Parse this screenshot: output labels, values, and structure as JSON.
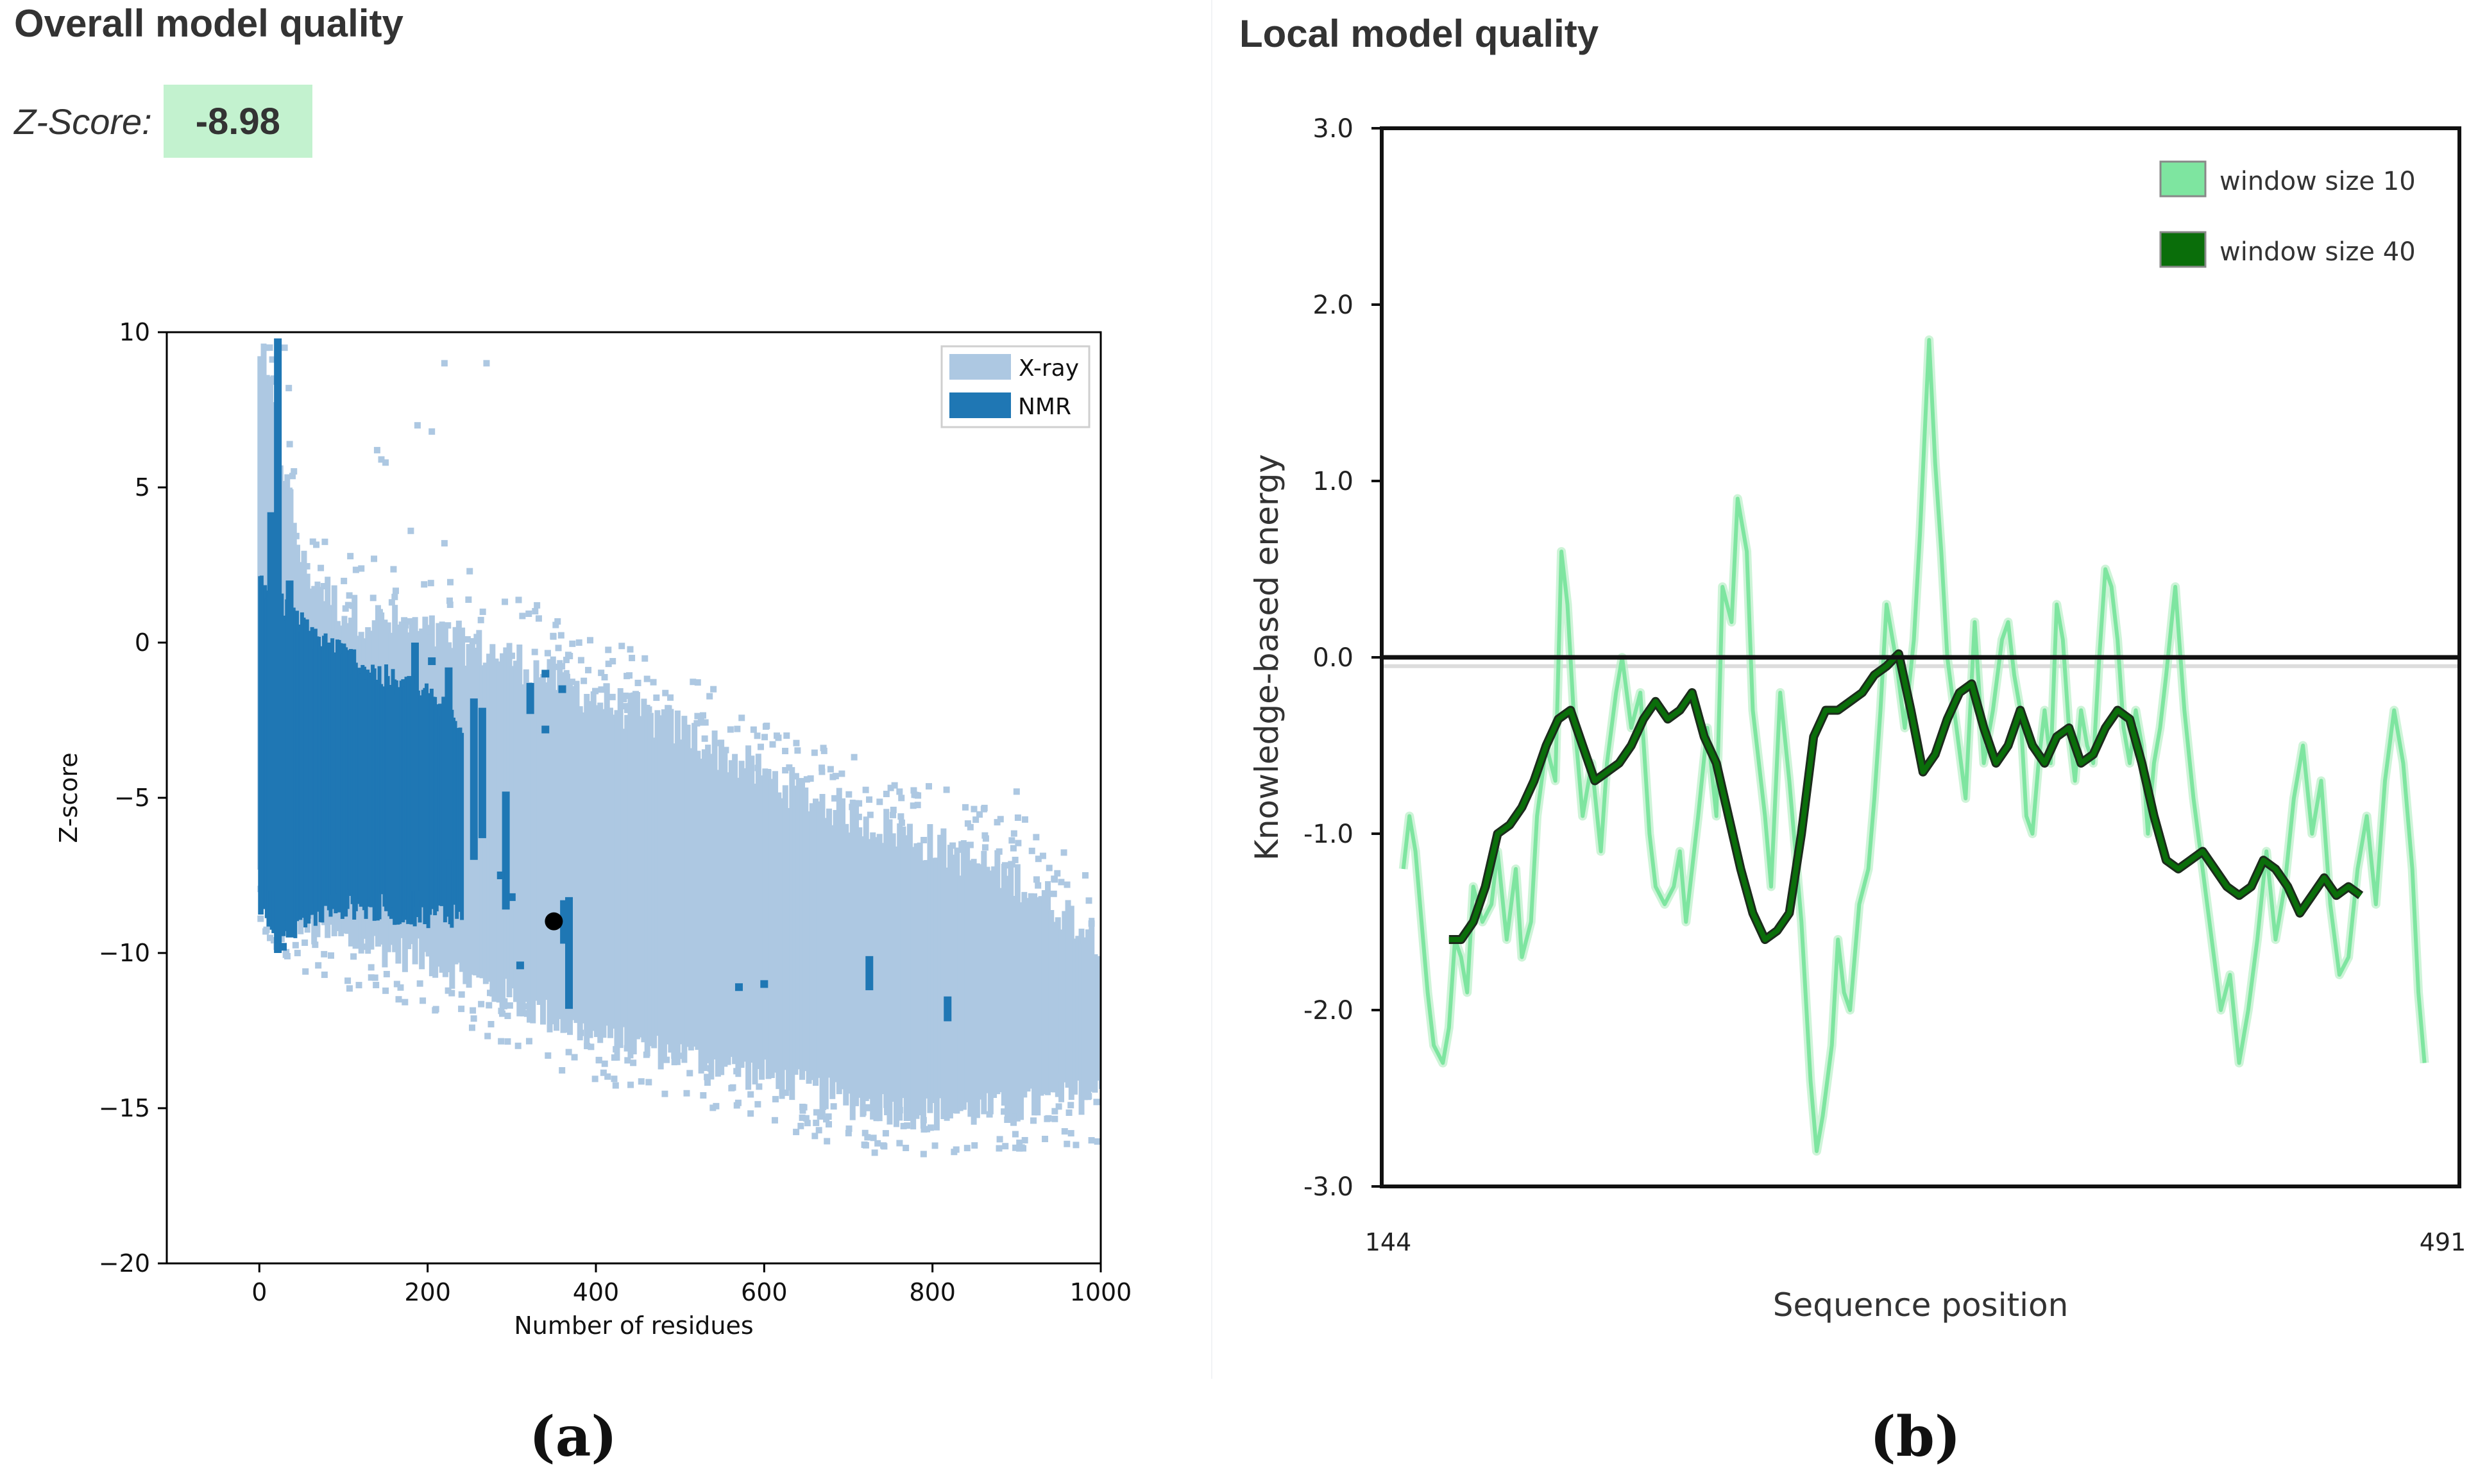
{
  "panel_a": {
    "title": "Overall model quality",
    "zscore_label": "Z-Score:",
    "zscore_value": "-8.98",
    "caption": "(a)"
  },
  "panel_b": {
    "title": "Local model quality",
    "caption": "(b)"
  },
  "colors": {
    "xray": "#adc8e2",
    "nmr": "#1f77b4",
    "w10": "#7ee5a0",
    "w40": "#0a6e0a",
    "zscore_bg": "#c3f2cf"
  },
  "chart_data": [
    {
      "type": "scatter",
      "title": "",
      "xlabel": "Number of residues",
      "ylabel": "Z-score",
      "xlim": [
        -110,
        1000
      ],
      "ylim": [
        -20,
        10
      ],
      "xticks": [
        0,
        200,
        400,
        600,
        800,
        1000
      ],
      "xtick_labels": [
        "0",
        "200",
        "400",
        "600",
        "800",
        "1000"
      ],
      "yticks": [
        10,
        5,
        0,
        -5,
        -10,
        -15,
        -20
      ],
      "ytick_labels": [
        "10",
        "5",
        "0",
        "−5",
        "−10",
        "−15",
        "−20"
      ],
      "legend": {
        "position": "top-right",
        "entries": [
          "X-ray",
          "NMR"
        ]
      },
      "series": [
        {
          "name": "X-ray",
          "description": "dense density cloud of reference structures",
          "envelope": [
            {
              "x": 0,
              "low": -7.5,
              "high": 9.5
            },
            {
              "x": 50,
              "low": -9.2,
              "high": 2.5
            },
            {
              "x": 100,
              "low": -9.6,
              "high": 1.0
            },
            {
              "x": 200,
              "low": -10.2,
              "high": 0.3
            },
            {
              "x": 300,
              "low": -11.5,
              "high": -0.5
            },
            {
              "x": 400,
              "low": -12.8,
              "high": -1.8
            },
            {
              "x": 500,
              "low": -13.3,
              "high": -2.8
            },
            {
              "x": 600,
              "low": -14.0,
              "high": -4.3
            },
            {
              "x": 700,
              "low": -14.8,
              "high": -5.5
            },
            {
              "x": 800,
              "low": -15.2,
              "high": -6.5
            },
            {
              "x": 900,
              "low": -15.0,
              "high": -7.6
            },
            {
              "x": 1000,
              "low": -14.5,
              "high": -9.5
            }
          ],
          "outliers": [
            [
              30,
              9.5
            ],
            [
              35,
              8.2
            ],
            [
              220,
              9.0
            ],
            [
              270,
              9.0
            ],
            [
              205,
              6.8
            ],
            [
              188,
              7.0
            ],
            [
              140,
              6.2
            ],
            [
              145,
              5.9
            ],
            [
              150,
              5.8
            ],
            [
              180,
              3.6
            ],
            [
              220,
              3.2
            ],
            [
              250,
              2.3
            ],
            [
              330,
              1.2
            ],
            [
              380,
              0.0
            ],
            [
              420,
              -0.6
            ],
            [
              450,
              -1.3
            ],
            [
              520,
              -2.6
            ],
            [
              560,
              -2.8
            ],
            [
              615,
              -3.0
            ],
            [
              685,
              -4.3
            ],
            [
              755,
              -4.6
            ],
            [
              900,
              -4.8
            ],
            [
              910,
              -5.7
            ],
            [
              960,
              -7.8
            ],
            [
              980,
              -9.6
            ],
            [
              990,
              -10.3
            ],
            [
              240,
              -11.8
            ],
            [
              950,
              -14.0
            ],
            [
              995,
              -14.8
            ],
            [
              920,
              -15.4
            ],
            [
              850,
              -16.2
            ],
            [
              880,
              -16.0
            ],
            [
              720,
              -15.8
            ]
          ]
        },
        {
          "name": "NMR",
          "description": "dense band at small residue counts",
          "envelope": [
            {
              "x": 0,
              "low": -8.5,
              "high": 2.0
            },
            {
              "x": 30,
              "low": -9.2,
              "high": 1.0
            },
            {
              "x": 60,
              "low": -8.8,
              "high": 0.3
            },
            {
              "x": 100,
              "low": -8.4,
              "high": -0.4
            },
            {
              "x": 150,
              "low": -8.6,
              "high": -1.2
            },
            {
              "x": 200,
              "low": -8.7,
              "high": -1.8
            },
            {
              "x": 240,
              "low": -8.7,
              "high": -2.5
            }
          ],
          "streaks": [
            {
              "x": 22,
              "low": -10.0,
              "high": 9.8
            },
            {
              "x": 14,
              "low": -8.0,
              "high": 4.2
            },
            {
              "x": 36,
              "low": -9.5,
              "high": 2.0
            },
            {
              "x": 185,
              "low": -8.0,
              "high": 0.0
            },
            {
              "x": 225,
              "low": -7.0,
              "high": -0.8
            },
            {
              "x": 255,
              "low": -7.0,
              "high": -1.8
            },
            {
              "x": 265,
              "low": -6.3,
              "high": -2.1
            },
            {
              "x": 293,
              "low": -8.6,
              "high": -4.8
            },
            {
              "x": 322,
              "low": -2.3,
              "high": -1.3
            },
            {
              "x": 368,
              "low": -11.8,
              "high": -8.2
            },
            {
              "x": 362,
              "low": -9.7,
              "high": -8.3
            },
            {
              "x": 725,
              "low": -11.2,
              "high": -10.1
            },
            {
              "x": 818,
              "low": -12.2,
              "high": -11.4
            }
          ],
          "points": [
            [
              340,
              -1.0
            ],
            [
              360,
              -1.5
            ],
            [
              287,
              -7.5
            ],
            [
              300,
              -8.2
            ],
            [
              310,
              -10.4
            ],
            [
              570,
              -11.1
            ],
            [
              600,
              -11.0
            ],
            [
              28,
              -9.8
            ],
            [
              180,
              -1.2
            ],
            [
              205,
              -0.6
            ],
            [
              340,
              -2.8
            ]
          ]
        },
        {
          "name": "Query model",
          "points": [
            [
              350,
              -8.98
            ]
          ]
        }
      ]
    },
    {
      "type": "line",
      "title": "",
      "xlabel": "Sequence position",
      "ylabel": "Knowledge-based energy",
      "xlim": [
        144,
        491
      ],
      "ylim": [
        -3.0,
        3.0
      ],
      "xtick_labels": [
        "144",
        "491"
      ],
      "yticks": [
        3.0,
        2.0,
        1.0,
        0.0,
        -1.0,
        -2.0,
        -3.0
      ],
      "ytick_labels": [
        "3.0",
        "2.0",
        "1.0",
        "0.0",
        "-1.0",
        "-2.0",
        "-3.0"
      ],
      "legend": {
        "position": "top-right",
        "entries": [
          "window size 10",
          "window size 40"
        ]
      },
      "reference_line": 0.0,
      "series": [
        {
          "name": "window size 10",
          "x": [
            149,
            151,
            153,
            155,
            157,
            159,
            162,
            164,
            166,
            168,
            170,
            172,
            175,
            178,
            180,
            183,
            186,
            188,
            191,
            193,
            196,
            199,
            201,
            203,
            205,
            208,
            211,
            214,
            216,
            219,
            221,
            224,
            227,
            230,
            232,
            235,
            238,
            240,
            242,
            244,
            246,
            249,
            252,
            254,
            257,
            259,
            262,
            264,
            266,
            268,
            270,
            273,
            276,
            278,
            280,
            283,
            285,
            287,
            290,
            292,
            294,
            296,
            299,
            302,
            304,
            306,
            308,
            311,
            314,
            317,
            319,
            322,
            324,
            326,
            328,
            331,
            334,
            337,
            340,
            343,
            346,
            348,
            350,
            352,
            354,
            356,
            358,
            360,
            362,
            364,
            366,
            368,
            370,
            372,
            374,
            376,
            378,
            380,
            382,
            384,
            386,
            388,
            390,
            392,
            394,
            396,
            398,
            400,
            403,
            406,
            409,
            412,
            415,
            418,
            421,
            424,
            427,
            430,
            433,
            436,
            439,
            442,
            445,
            448,
            451,
            454,
            457,
            460,
            463,
            466,
            469,
            472,
            475,
            478,
            481,
            483,
            485
          ],
          "y": [
            -1.2,
            -0.9,
            -1.1,
            -1.5,
            -1.9,
            -2.2,
            -2.3,
            -2.1,
            -1.6,
            -1.7,
            -1.9,
            -1.3,
            -1.5,
            -1.4,
            -1.1,
            -1.6,
            -1.2,
            -1.7,
            -1.5,
            -0.9,
            -0.5,
            -0.7,
            0.6,
            0.3,
            -0.3,
            -0.9,
            -0.6,
            -1.1,
            -0.6,
            -0.2,
            0.0,
            -0.4,
            -0.2,
            -1.0,
            -1.3,
            -1.4,
            -1.3,
            -1.1,
            -1.5,
            -1.2,
            -0.9,
            -0.4,
            -0.9,
            0.4,
            0.2,
            0.9,
            0.6,
            -0.3,
            -0.6,
            -0.9,
            -1.3,
            -0.2,
            -0.7,
            -1.1,
            -1.5,
            -2.4,
            -2.8,
            -2.6,
            -2.2,
            -1.6,
            -1.9,
            -2.0,
            -1.4,
            -1.2,
            -0.8,
            -0.3,
            0.3,
            0.0,
            -0.4,
            0.1,
            0.7,
            1.8,
            1.1,
            0.6,
            0.0,
            -0.4,
            -0.8,
            0.2,
            -0.6,
            -0.3,
            0.1,
            0.2,
            -0.1,
            -0.3,
            -0.9,
            -1.0,
            -0.6,
            -0.3,
            -0.6,
            0.3,
            0.1,
            -0.4,
            -0.7,
            -0.3,
            -0.5,
            -0.6,
            0.0,
            0.5,
            0.4,
            0.1,
            -0.4,
            -0.6,
            -0.3,
            -0.5,
            -1.0,
            -0.6,
            -0.4,
            -0.1,
            0.4,
            -0.3,
            -0.8,
            -1.2,
            -1.6,
            -2.0,
            -1.8,
            -2.3,
            -2.0,
            -1.6,
            -1.1,
            -1.6,
            -1.3,
            -0.8,
            -0.5,
            -1.0,
            -0.7,
            -1.4,
            -1.8,
            -1.7,
            -1.2,
            -0.9,
            -1.4,
            -0.7,
            -0.3,
            -0.6,
            -1.2,
            -1.9,
            -2.3
          ],
          "color": "#7ee5a0"
        },
        {
          "name": "window size 40",
          "x": [
            164,
            168,
            172,
            176,
            180,
            184,
            188,
            192,
            196,
            200,
            204,
            208,
            212,
            216,
            220,
            224,
            228,
            232,
            236,
            240,
            244,
            248,
            252,
            256,
            260,
            264,
            268,
            272,
            276,
            280,
            284,
            288,
            292,
            296,
            300,
            304,
            308,
            312,
            316,
            320,
            324,
            328,
            332,
            336,
            340,
            344,
            348,
            352,
            356,
            360,
            364,
            368,
            372,
            376,
            380,
            384,
            388,
            392,
            396,
            400,
            404,
            408,
            412,
            416,
            420,
            424,
            428,
            432,
            436,
            440,
            444,
            448,
            452,
            456,
            460,
            464
          ],
          "y": [
            -1.6,
            -1.6,
            -1.5,
            -1.3,
            -1.0,
            -0.95,
            -0.85,
            -0.7,
            -0.5,
            -0.35,
            -0.3,
            -0.5,
            -0.7,
            -0.65,
            -0.6,
            -0.5,
            -0.35,
            -0.25,
            -0.35,
            -0.3,
            -0.2,
            -0.45,
            -0.6,
            -0.9,
            -1.2,
            -1.45,
            -1.6,
            -1.55,
            -1.45,
            -1.0,
            -0.45,
            -0.3,
            -0.3,
            -0.25,
            -0.2,
            -0.1,
            -0.05,
            0.02,
            -0.3,
            -0.65,
            -0.55,
            -0.35,
            -0.2,
            -0.15,
            -0.4,
            -0.6,
            -0.5,
            -0.3,
            -0.5,
            -0.6,
            -0.45,
            -0.4,
            -0.6,
            -0.55,
            -0.4,
            -0.3,
            -0.35,
            -0.6,
            -0.9,
            -1.15,
            -1.2,
            -1.15,
            -1.1,
            -1.2,
            -1.3,
            -1.35,
            -1.3,
            -1.15,
            -1.2,
            -1.3,
            -1.45,
            -1.35,
            -1.25,
            -1.35,
            -1.3,
            -1.35
          ],
          "color": "#0a6e0a"
        }
      ]
    }
  ]
}
